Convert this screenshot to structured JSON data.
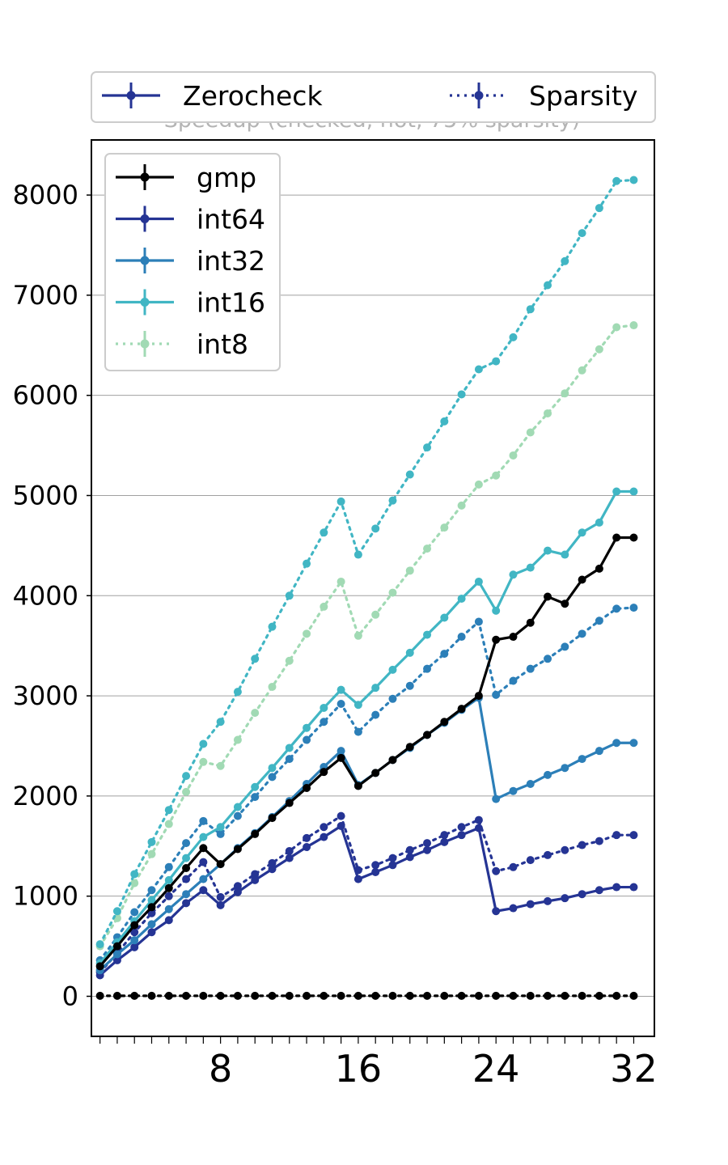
{
  "chart_data": {
    "type": "line",
    "title": "Speedup (checked, hot, 75% sparsity)",
    "xlabel": "",
    "ylabel": "",
    "x": [
      1,
      2,
      3,
      4,
      5,
      6,
      7,
      8,
      9,
      10,
      11,
      12,
      13,
      14,
      15,
      16,
      17,
      18,
      19,
      20,
      21,
      22,
      23,
      24,
      25,
      26,
      27,
      28,
      29,
      30,
      31,
      32
    ],
    "x_ticks": [
      8,
      16,
      24,
      32
    ],
    "xlim": [
      0.5,
      33.2
    ],
    "y_ticks": [
      0,
      1000,
      2000,
      3000,
      4000,
      5000,
      6000,
      7000,
      8000
    ],
    "ylim": [
      -400,
      8550
    ],
    "grid": "horizontal",
    "style_legend": {
      "placement": "top (above plot)",
      "entries": [
        {
          "label": "Zerocheck",
          "linestyle": "solid"
        },
        {
          "label": "Sparsity",
          "linestyle": "dotted"
        }
      ]
    },
    "type_legend": {
      "placement": "upper-left",
      "entries": [
        {
          "label": "gmp",
          "color": "#000000",
          "linestyle": "solid"
        },
        {
          "label": "int64",
          "color": "#253494",
          "linestyle": "solid"
        },
        {
          "label": "int32",
          "color": "#2c7fb8",
          "linestyle": "solid"
        },
        {
          "label": "int16",
          "color": "#41b6c4",
          "linestyle": "solid"
        },
        {
          "label": "int8",
          "color": "#a1dab4",
          "linestyle": "dotted"
        }
      ]
    },
    "series": [
      {
        "name": "int8",
        "style": "Sparsity",
        "color": "#a1dab4",
        "dash": "dotted",
        "values": [
          500,
          780,
          1130,
          1420,
          1720,
          2040,
          2340,
          2300,
          2560,
          2830,
          3090,
          3350,
          3620,
          3890,
          4140,
          3600,
          3810,
          4030,
          4250,
          4470,
          4680,
          4900,
          5110,
          5200,
          5400,
          5630,
          5820,
          6020,
          6250,
          6460,
          6680,
          6700
        ]
      },
      {
        "name": "int16",
        "style": "Sparsity",
        "color": "#41b6c4",
        "dash": "dotted",
        "values": [
          520,
          850,
          1220,
          1540,
          1860,
          2200,
          2520,
          2740,
          3040,
          3370,
          3690,
          4000,
          4320,
          4630,
          4940,
          4410,
          4670,
          4950,
          5210,
          5480,
          5740,
          6010,
          6260,
          6340,
          6580,
          6860,
          7100,
          7340,
          7620,
          7870,
          8140,
          8150
        ]
      },
      {
        "name": "int32",
        "style": "Sparsity",
        "color": "#2c7fb8",
        "dash": "dotted",
        "values": [
          360,
          590,
          840,
          1060,
          1290,
          1530,
          1750,
          1620,
          1800,
          1990,
          2190,
          2370,
          2560,
          2740,
          2920,
          2640,
          2810,
          2970,
          3100,
          3270,
          3420,
          3590,
          3740,
          3010,
          3150,
          3270,
          3370,
          3490,
          3620,
          3750,
          3870,
          3880
        ]
      },
      {
        "name": "int64",
        "style": "Sparsity",
        "color": "#253494",
        "dash": "dotted",
        "values": [
          240,
          430,
          640,
          830,
          1000,
          1170,
          1340,
          990,
          1100,
          1220,
          1330,
          1450,
          1580,
          1690,
          1800,
          1260,
          1310,
          1380,
          1460,
          1530,
          1610,
          1690,
          1760,
          1250,
          1290,
          1360,
          1410,
          1460,
          1510,
          1550,
          1610,
          1610
        ]
      },
      {
        "name": "gmp",
        "style": "Sparsity",
        "color": "#000000",
        "dash": "dotted",
        "values": [
          5,
          5,
          5,
          5,
          5,
          5,
          5,
          5,
          5,
          5,
          5,
          5,
          5,
          5,
          5,
          5,
          5,
          5,
          5,
          5,
          5,
          5,
          5,
          5,
          5,
          5,
          5,
          5,
          5,
          5,
          5,
          5
        ]
      },
      {
        "name": "int64",
        "style": "Zerocheck",
        "color": "#253494",
        "dash": "solid",
        "values": [
          210,
          360,
          490,
          640,
          760,
          930,
          1060,
          910,
          1040,
          1160,
          1270,
          1380,
          1490,
          1590,
          1700,
          1170,
          1240,
          1310,
          1390,
          1460,
          1540,
          1610,
          1680,
          850,
          880,
          920,
          950,
          980,
          1020,
          1060,
          1090,
          1090
        ]
      },
      {
        "name": "int32",
        "style": "Zerocheck",
        "color": "#2c7fb8",
        "dash": "solid",
        "values": [
          260,
          420,
          560,
          720,
          870,
          1020,
          1170,
          1320,
          1480,
          1630,
          1790,
          1950,
          2120,
          2290,
          2450,
          2110,
          2230,
          2360,
          2480,
          2610,
          2730,
          2860,
          2980,
          1970,
          2050,
          2120,
          2210,
          2280,
          2370,
          2450,
          2530,
          2530
        ]
      },
      {
        "name": "int16",
        "style": "Zerocheck",
        "color": "#41b6c4",
        "dash": "solid",
        "values": [
          330,
          540,
          750,
          960,
          1160,
          1380,
          1590,
          1690,
          1890,
          2090,
          2280,
          2480,
          2680,
          2880,
          3060,
          2910,
          3080,
          3260,
          3430,
          3610,
          3780,
          3970,
          4140,
          3850,
          4210,
          4280,
          4450,
          4410,
          4630,
          4730,
          5040,
          5040
        ]
      },
      {
        "name": "gmp",
        "style": "Zerocheck",
        "color": "#000000",
        "dash": "solid",
        "values": [
          300,
          500,
          710,
          890,
          1080,
          1280,
          1480,
          1320,
          1470,
          1620,
          1780,
          1930,
          2080,
          2240,
          2380,
          2100,
          2230,
          2360,
          2490,
          2610,
          2740,
          2870,
          3000,
          3560,
          3590,
          3730,
          3990,
          3920,
          4160,
          4270,
          4580,
          4580
        ]
      }
    ]
  }
}
